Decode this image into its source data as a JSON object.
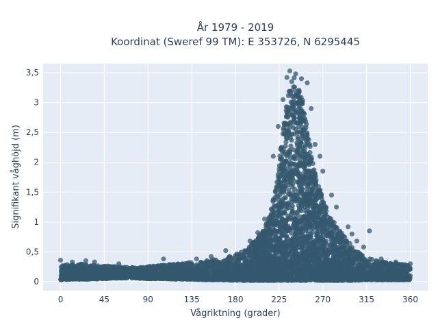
{
  "chart_data": {
    "type": "scatter",
    "title_line1": "År 1979 - 2019",
    "title_line2": "Koordinat (Sweref 99 TM): E 353726, N 6295445",
    "xlabel": "Vågriktning (grader)",
    "ylabel": "Signifikant våghöjd (m)",
    "xlim": [
      -18,
      378
    ],
    "ylim": [
      -0.15,
      3.65
    ],
    "x_ticks": [
      0,
      45,
      90,
      135,
      180,
      225,
      270,
      315,
      360
    ],
    "x_tick_labels": [
      "0",
      "45",
      "90",
      "135",
      "180",
      "225",
      "270",
      "315",
      "360"
    ],
    "y_ticks": [
      0,
      0.5,
      1,
      1.5,
      2,
      2.5,
      3,
      3.5
    ],
    "y_tick_labels": [
      "0",
      "0,5",
      "1",
      "1,5",
      "2",
      "2,5",
      "3",
      "3,5"
    ],
    "grid": true,
    "plot_background": "#e5ecf6",
    "marker_color": "#34586e",
    "envelope": {
      "x": [
        0,
        10,
        20,
        30,
        45,
        60,
        75,
        90,
        105,
        120,
        135,
        150,
        165,
        180,
        190,
        200,
        210,
        215,
        220,
        225,
        230,
        235,
        240,
        245,
        250,
        255,
        260,
        265,
        270,
        275,
        280,
        285,
        290,
        295,
        300,
        305,
        310,
        315,
        320,
        330,
        340,
        350,
        360
      ],
      "y_max": [
        0.3,
        0.28,
        0.3,
        0.28,
        0.27,
        0.25,
        0.24,
        0.25,
        0.28,
        0.3,
        0.32,
        0.35,
        0.4,
        0.45,
        0.55,
        0.68,
        0.9,
        1.1,
        1.45,
        2.0,
        2.7,
        3.2,
        3.45,
        3.35,
        3.0,
        2.45,
        2.0,
        1.65,
        1.4,
        1.2,
        1.05,
        0.9,
        0.8,
        0.7,
        0.6,
        0.52,
        0.45,
        0.42,
        0.38,
        0.34,
        0.32,
        0.3,
        0.28
      ],
      "y_min": [
        0.03,
        0.04,
        0.04,
        0.04,
        0.05,
        0.06,
        0.06,
        0.05,
        0.05,
        0.04,
        0.04,
        0.03,
        0.03,
        0.02,
        0.02,
        0.02,
        0.02,
        0.02,
        0.02,
        0.02,
        0.02,
        0.02,
        0.02,
        0.02,
        0.02,
        0.02,
        0.02,
        0.02,
        0.02,
        0.02,
        0.02,
        0.02,
        0.02,
        0.02,
        0.02,
        0.02,
        0.03,
        0.03,
        0.03,
        0.03,
        0.03,
        0.03,
        0.03
      ]
    },
    "outliers": [
      {
        "x": 236,
        "y": 3.53
      },
      {
        "x": 242,
        "y": 3.48
      },
      {
        "x": 233,
        "y": 3.42
      },
      {
        "x": 248,
        "y": 3.4
      },
      {
        "x": 254,
        "y": 3.33
      },
      {
        "x": 238,
        "y": 3.35
      },
      {
        "x": 229,
        "y": 3.05
      },
      {
        "x": 258,
        "y": 2.9
      },
      {
        "x": 224,
        "y": 2.6
      },
      {
        "x": 262,
        "y": 2.3
      },
      {
        "x": 267,
        "y": 2.1
      },
      {
        "x": 270,
        "y": 1.85
      },
      {
        "x": 219,
        "y": 2.1
      },
      {
        "x": 279,
        "y": 1.45
      },
      {
        "x": 284,
        "y": 1.25
      },
      {
        "x": 318,
        "y": 0.85
      },
      {
        "x": 300,
        "y": 0.8
      },
      {
        "x": 296,
        "y": 0.92
      },
      {
        "x": 305,
        "y": 0.68
      },
      {
        "x": 312,
        "y": 0.58
      },
      {
        "x": 210,
        "y": 1.05
      },
      {
        "x": 203,
        "y": 0.82
      },
      {
        "x": 195,
        "y": 0.68
      },
      {
        "x": 170,
        "y": 0.52
      },
      {
        "x": 155,
        "y": 0.42
      },
      {
        "x": 140,
        "y": 0.38
      },
      {
        "x": 106,
        "y": 0.38
      },
      {
        "x": 26,
        "y": 0.35
      },
      {
        "x": 0,
        "y": 0.36
      },
      {
        "x": 12,
        "y": 0.33
      },
      {
        "x": 35,
        "y": 0.33
      },
      {
        "x": 60,
        "y": 0.3
      },
      {
        "x": 330,
        "y": 0.38
      },
      {
        "x": 345,
        "y": 0.33
      },
      {
        "x": 360,
        "y": 0.3
      }
    ]
  }
}
